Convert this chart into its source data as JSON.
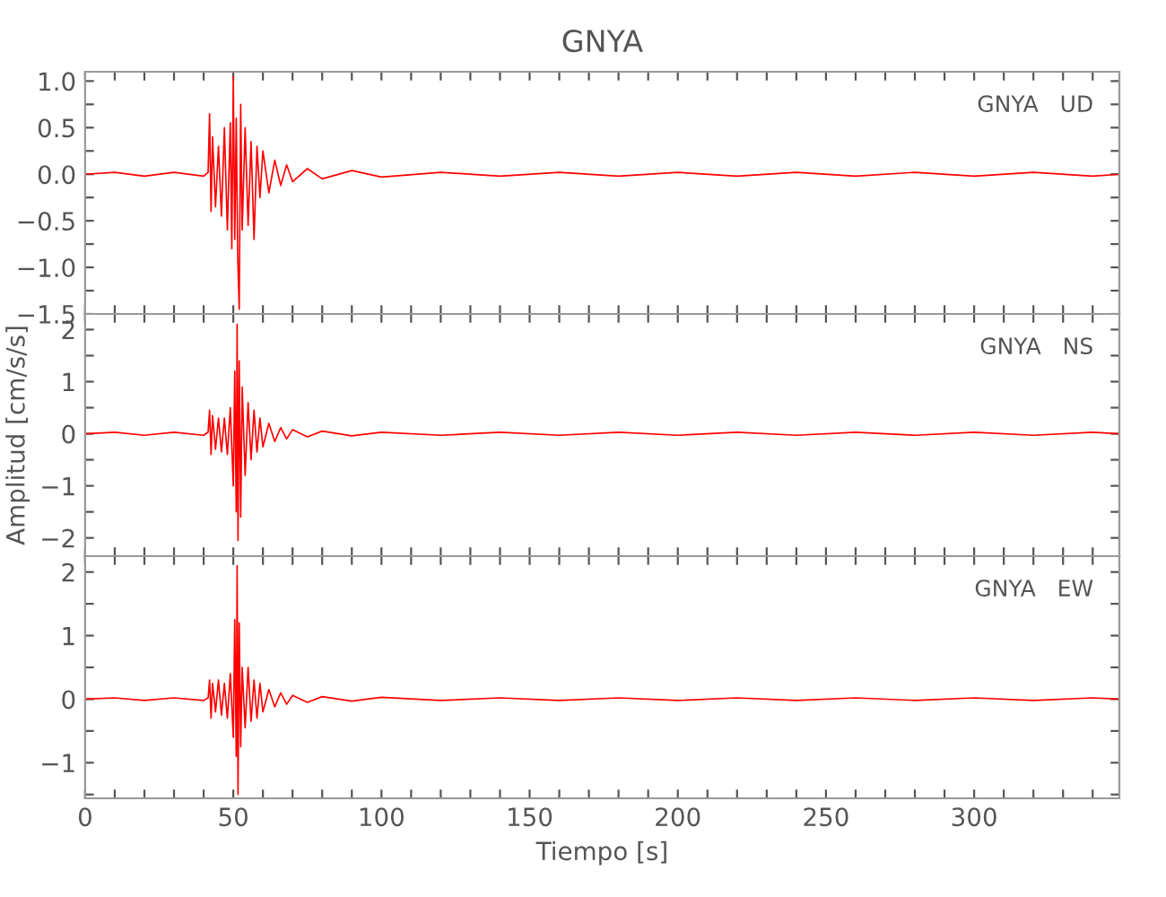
{
  "chart_data": [
    {
      "type": "line",
      "title": "GNYA",
      "annotations": [
        "GNYA   UD"
      ],
      "xlim": [
        0,
        349
      ],
      "ylim": [
        -1.5,
        1.1
      ],
      "tick_labels": "y",
      "xticks": [
        0,
        {
          "value": 10,
          "label": null
        },
        {
          "value": 20,
          "label": null
        },
        {
          "value": 30,
          "label": null
        },
        {
          "value": 40,
          "label": null
        },
        50,
        {
          "value": 60,
          "label": null
        },
        {
          "value": 70,
          "label": null
        },
        {
          "value": 80,
          "label": null
        },
        {
          "value": 90,
          "label": null
        },
        100,
        {
          "value": 110,
          "label": null
        },
        {
          "value": 120,
          "label": null
        },
        {
          "value": 130,
          "label": null
        },
        {
          "value": 140,
          "label": null
        },
        150,
        {
          "value": 160,
          "label": null
        },
        {
          "value": 170,
          "label": null
        },
        {
          "value": 180,
          "label": null
        },
        {
          "value": 190,
          "label": null
        },
        200,
        {
          "value": 210,
          "label": null
        },
        {
          "value": 220,
          "label": null
        },
        {
          "value": 230,
          "label": null
        },
        {
          "value": 240,
          "label": null
        },
        250,
        {
          "value": 260,
          "label": null
        },
        {
          "value": 270,
          "label": null
        },
        {
          "value": 280,
          "label": null
        },
        {
          "value": 290,
          "label": null
        },
        300,
        {
          "value": 310,
          "label": null
        },
        {
          "value": 320,
          "label": null
        },
        {
          "value": 330,
          "label": null
        },
        {
          "value": 340,
          "label": null
        }
      ],
      "yticks": [
        {
          "value": -1.5,
          "label": "−1.5"
        },
        {
          "value": -1.25,
          "label": null
        },
        {
          "value": -1.0,
          "label": "−1.0"
        },
        {
          "value": -0.75,
          "label": null
        },
        {
          "value": -0.5,
          "label": "−0.5"
        },
        {
          "value": -0.25,
          "label": null
        },
        {
          "value": 0,
          "label": "0.0"
        },
        {
          "value": 0.25,
          "label": null
        },
        {
          "value": 0.5,
          "label": "0.5"
        },
        {
          "value": 0.75,
          "label": null
        },
        {
          "value": 1.0,
          "label": "1.0"
        }
      ],
      "series": [
        {
          "color": "#ff0000",
          "x": [
            0,
            10,
            20,
            30,
            40,
            41.5,
            42,
            42.5,
            43,
            44,
            45,
            46,
            47,
            48,
            49,
            49.5,
            50,
            50.5,
            51,
            51.5,
            52,
            52.5,
            53,
            54,
            55,
            56,
            57,
            58,
            59,
            60,
            62,
            64,
            66,
            68,
            70,
            75,
            80,
            90,
            100,
            120,
            140,
            160,
            180,
            200,
            220,
            240,
            260,
            280,
            300,
            320,
            340,
            349
          ],
          "values": [
            0,
            0.02,
            -0.02,
            0.02,
            -0.02,
            0.02,
            0.65,
            -0.4,
            0.4,
            -0.35,
            0.3,
            -0.45,
            0.5,
            -0.6,
            0.55,
            -0.8,
            1.05,
            -0.7,
            0.6,
            -0.9,
            -1.45,
            0.75,
            -0.6,
            0.5,
            -0.55,
            0.35,
            -0.7,
            0.3,
            -0.25,
            0.25,
            -0.2,
            0.15,
            -0.12,
            0.1,
            -0.08,
            0.06,
            -0.05,
            0.04,
            -0.03,
            0.02,
            -0.02,
            0.02,
            -0.02,
            0.02,
            -0.02,
            0.02,
            -0.02,
            0.02,
            -0.02,
            0.02,
            -0.02,
            0
          ]
        }
      ]
    },
    {
      "type": "line",
      "annotations": [
        "GNYA   NS"
      ],
      "ylabel": "Amplitud [cm/s/s]",
      "xlim": [
        0,
        349
      ],
      "ylim": [
        -2.35,
        2.3
      ],
      "tick_labels": "y",
      "xticks": [
        0,
        {
          "value": 10,
          "label": null
        },
        {
          "value": 20,
          "label": null
        },
        {
          "value": 30,
          "label": null
        },
        {
          "value": 40,
          "label": null
        },
        50,
        {
          "value": 60,
          "label": null
        },
        {
          "value": 70,
          "label": null
        },
        {
          "value": 80,
          "label": null
        },
        {
          "value": 90,
          "label": null
        },
        100,
        {
          "value": 110,
          "label": null
        },
        {
          "value": 120,
          "label": null
        },
        {
          "value": 130,
          "label": null
        },
        {
          "value": 140,
          "label": null
        },
        150,
        {
          "value": 160,
          "label": null
        },
        {
          "value": 170,
          "label": null
        },
        {
          "value": 180,
          "label": null
        },
        {
          "value": 190,
          "label": null
        },
        200,
        {
          "value": 210,
          "label": null
        },
        {
          "value": 220,
          "label": null
        },
        {
          "value": 230,
          "label": null
        },
        {
          "value": 240,
          "label": null
        },
        250,
        {
          "value": 260,
          "label": null
        },
        {
          "value": 270,
          "label": null
        },
        {
          "value": 280,
          "label": null
        },
        {
          "value": 290,
          "label": null
        },
        300,
        {
          "value": 310,
          "label": null
        },
        {
          "value": 320,
          "label": null
        },
        {
          "value": 330,
          "label": null
        },
        {
          "value": 340,
          "label": null
        }
      ],
      "yticks": [
        {
          "value": -2,
          "label": "−2"
        },
        {
          "value": -1.5,
          "label": null
        },
        {
          "value": -1,
          "label": "−1"
        },
        {
          "value": -0.5,
          "label": null
        },
        0,
        {
          "value": 0.5,
          "label": null
        },
        1,
        {
          "value": 1.5,
          "label": null
        },
        2
      ],
      "series": [
        {
          "color": "#ff0000",
          "x": [
            0,
            10,
            20,
            30,
            40,
            41.5,
            42,
            42.5,
            43,
            44,
            45,
            46,
            47,
            48,
            49,
            50,
            50.5,
            51,
            51.3,
            51.6,
            52,
            52.5,
            53,
            54,
            55,
            56,
            57,
            58,
            59,
            60,
            62,
            64,
            66,
            68,
            70,
            75,
            80,
            90,
            100,
            120,
            140,
            160,
            180,
            200,
            220,
            240,
            260,
            280,
            300,
            320,
            340,
            349
          ],
          "values": [
            0,
            0.03,
            -0.03,
            0.03,
            -0.03,
            0.03,
            0.45,
            -0.4,
            0.35,
            -0.3,
            0.3,
            -0.35,
            0.3,
            -0.4,
            0.5,
            -1.0,
            1.2,
            -1.5,
            2.1,
            -2.05,
            1.4,
            -1.6,
            0.9,
            -0.8,
            0.6,
            -0.5,
            0.45,
            -0.35,
            0.3,
            -0.25,
            0.2,
            -0.15,
            0.12,
            -0.1,
            0.08,
            -0.06,
            0.05,
            -0.04,
            0.03,
            -0.03,
            0.03,
            -0.03,
            0.03,
            -0.03,
            0.03,
            -0.03,
            0.03,
            -0.03,
            0.03,
            -0.03,
            0.03,
            0
          ]
        }
      ]
    },
    {
      "type": "line",
      "annotations": [
        "GNYA   EW"
      ],
      "xlabel": "Tiempo [s]",
      "xlim": [
        0,
        349
      ],
      "ylim": [
        -1.56,
        2.25
      ],
      "xticks": [
        0,
        {
          "value": 10,
          "label": null
        },
        {
          "value": 20,
          "label": null
        },
        {
          "value": 30,
          "label": null
        },
        {
          "value": 40,
          "label": null
        },
        50,
        {
          "value": 60,
          "label": null
        },
        {
          "value": 70,
          "label": null
        },
        {
          "value": 80,
          "label": null
        },
        {
          "value": 90,
          "label": null
        },
        100,
        {
          "value": 110,
          "label": null
        },
        {
          "value": 120,
          "label": null
        },
        {
          "value": 130,
          "label": null
        },
        {
          "value": 140,
          "label": null
        },
        150,
        {
          "value": 160,
          "label": null
        },
        {
          "value": 170,
          "label": null
        },
        {
          "value": 180,
          "label": null
        },
        {
          "value": 190,
          "label": null
        },
        200,
        {
          "value": 210,
          "label": null
        },
        {
          "value": 220,
          "label": null
        },
        {
          "value": 230,
          "label": null
        },
        {
          "value": 240,
          "label": null
        },
        250,
        {
          "value": 260,
          "label": null
        },
        {
          "value": 270,
          "label": null
        },
        {
          "value": 280,
          "label": null
        },
        {
          "value": 290,
          "label": null
        },
        300,
        {
          "value": 310,
          "label": null
        },
        {
          "value": 320,
          "label": null
        },
        {
          "value": 330,
          "label": null
        },
        {
          "value": 340,
          "label": null
        }
      ],
      "yticks": [
        {
          "value": -1.5,
          "label": null
        },
        {
          "value": -1,
          "label": "−1"
        },
        {
          "value": -0.5,
          "label": null
        },
        0,
        {
          "value": 0.5,
          "label": null
        },
        1,
        {
          "value": 1.5,
          "label": null
        },
        2
      ],
      "series": [
        {
          "color": "#ff0000",
          "x": [
            0,
            10,
            20,
            30,
            40,
            41.5,
            42,
            42.5,
            43,
            44,
            45,
            46,
            47,
            48,
            49,
            50,
            50.5,
            51,
            51.3,
            51.6,
            52,
            52.5,
            53,
            54,
            55,
            56,
            57,
            58,
            59,
            60,
            62,
            64,
            66,
            68,
            70,
            75,
            80,
            90,
            100,
            120,
            140,
            160,
            180,
            200,
            220,
            240,
            260,
            280,
            300,
            320,
            340,
            349
          ],
          "values": [
            0,
            0.02,
            -0.02,
            0.02,
            -0.02,
            0.02,
            0.3,
            -0.3,
            0.25,
            -0.2,
            0.3,
            -0.25,
            0.25,
            -0.3,
            0.4,
            -0.6,
            1.25,
            -0.9,
            2.1,
            -1.5,
            1.2,
            -0.75,
            0.5,
            -0.45,
            0.5,
            -0.35,
            0.3,
            -0.3,
            0.25,
            -0.2,
            0.15,
            -0.12,
            0.1,
            -0.08,
            0.06,
            -0.05,
            0.04,
            -0.03,
            0.03,
            -0.02,
            0.02,
            -0.02,
            0.02,
            -0.02,
            0.02,
            -0.02,
            0.02,
            -0.02,
            0.02,
            -0.02,
            0.02,
            0
          ]
        }
      ]
    }
  ]
}
